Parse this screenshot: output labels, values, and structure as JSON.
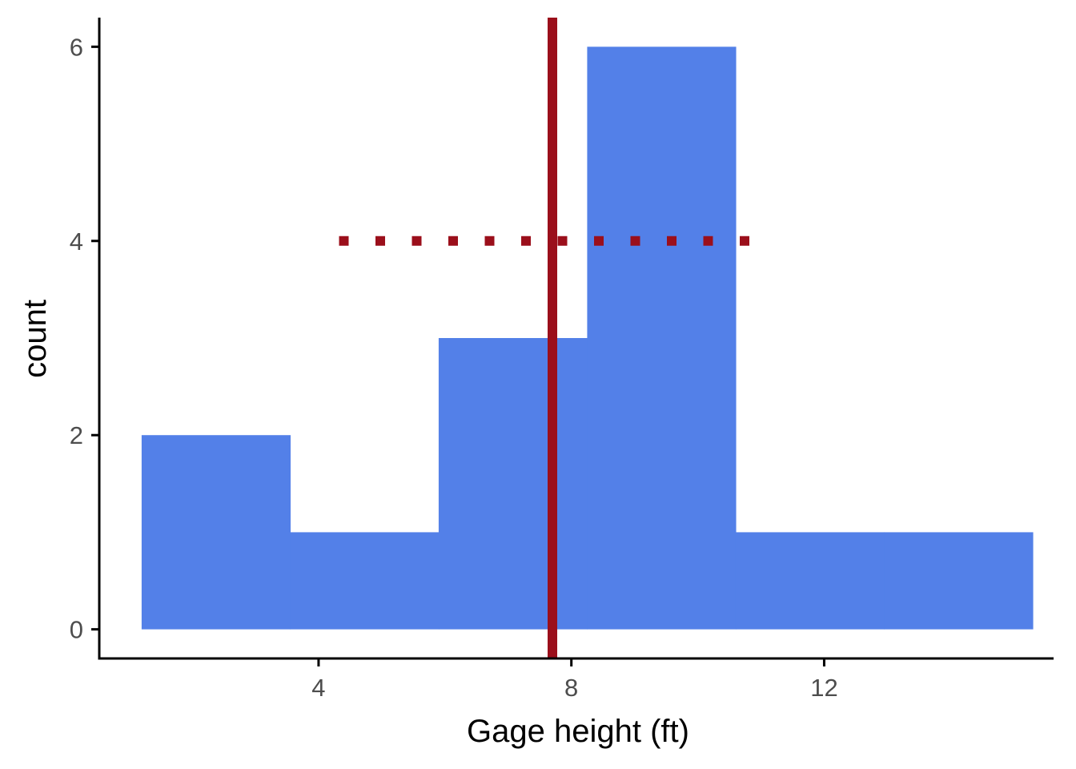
{
  "chart_data": {
    "type": "bar",
    "subtype": "histogram",
    "xlabel": "Gage height (ft)",
    "ylabel": "count",
    "xlim": [
      0.53,
      15.63
    ],
    "ylim": [
      -0.3,
      6.3
    ],
    "x_ticks": [
      4,
      8,
      12
    ],
    "y_ticks": [
      0,
      2,
      4,
      6
    ],
    "grid": false,
    "bins": [
      {
        "x0": 1.2,
        "x1": 3.55,
        "count": 2
      },
      {
        "x0": 3.55,
        "x1": 5.9,
        "count": 1
      },
      {
        "x0": 5.9,
        "x1": 8.25,
        "count": 3
      },
      {
        "x0": 8.25,
        "x1": 10.6,
        "count": 6
      },
      {
        "x0": 10.6,
        "x1": 12.95,
        "count": 1
      },
      {
        "x0": 12.95,
        "x1": 15.3,
        "count": 1
      }
    ],
    "reference_lines": [
      {
        "orientation": "vertical",
        "x": 7.7,
        "style": "solid"
      },
      {
        "orientation": "horizontal",
        "y": 4,
        "x_from": 4.4,
        "x_to": 11.0,
        "style": "dotted"
      }
    ],
    "colors": {
      "bars": "#5380e8",
      "reference": "#9b0f1b",
      "axis": "#000000",
      "tick_text": "#4d4d4d"
    }
  }
}
